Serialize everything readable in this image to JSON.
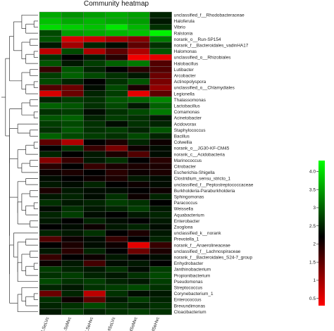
{
  "chart_data": {
    "type": "heatmap",
    "title": "Community heatmap",
    "columns": [
      "LSeLVc",
      "LSsMvc",
      "LSeHvc",
      "HSsLVc",
      "HSsMvc",
      "HSeHvc"
    ],
    "rows": [
      "unclassified_f__Rhodobacteraceae",
      "Haloferula",
      "Vibrio",
      "Ralstonia",
      "norank_o__Run-SP154",
      "norank_f__Bacteroidales_vadinHA17",
      "Halomonas",
      "unclassified_o__Rhizobiales",
      "Halobacillus",
      "Lutibacter",
      "Arcobacter",
      "Actinopolyspora",
      "unclassified_o__Chlamydiales",
      "Legionella",
      "Thalassomonas",
      "Lactobacillus",
      "Comamonas",
      "Acinetobacter",
      "Acidovorax",
      "Staphylococcus",
      "Bacillus",
      "Colwellia",
      "norank_o__JG30-KF-CM45",
      "norank_c__Acidobacteria",
      "Marinococcus",
      "Citrobacter",
      "Escherichia-Shigella",
      "Clostridium_sensu_stricto_1",
      "unclassified_f__Peptostreptococcaceae",
      "Burkholderia-Paraburkholderia",
      "Sphingomonas",
      "Paracoccus",
      "Weissella",
      "Aquabacterium",
      "Enterobacter",
      "Zoogloea",
      "unclassified_k__norank",
      "Prevotella_1",
      "norank_f__Anaerolineaceae",
      "unclassified_f__Lachnospiraceae",
      "norank_f__Bacteroidales_S24-7_group",
      "Enhydrobacter",
      "Janthinobacterium",
      "Propionibacterium",
      "Pseudomonas",
      "Streptococcus",
      "Corynebacterium_1",
      "Enterococcus",
      "Brevundimonas",
      "Cloacibacterium"
    ],
    "values": [
      [
        3.6,
        3.4,
        3.5,
        3.6,
        3.5,
        2.5
      ],
      [
        3.8,
        3.6,
        3.7,
        3.6,
        3.5,
        2.4
      ],
      [
        4.0,
        3.9,
        3.8,
        4.1,
        3.7,
        2.6
      ],
      [
        2.8,
        3.5,
        3.6,
        3.7,
        3.8,
        4.2
      ],
      [
        2.9,
        0.6,
        0.7,
        1.0,
        1.2,
        3.2
      ],
      [
        2.4,
        1.0,
        2.5,
        2.3,
        1.5,
        2.6
      ],
      [
        0.8,
        2.8,
        0.9,
        1.5,
        0.9,
        2.9
      ],
      [
        2.6,
        2.2,
        2.4,
        1.9,
        0.4,
        0.5
      ],
      [
        2.9,
        2.4,
        2.7,
        3.0,
        3.2,
        1.6
      ],
      [
        1.8,
        2.9,
        2.5,
        2.2,
        1.9,
        1.6
      ],
      [
        2.7,
        3.0,
        2.8,
        2.6,
        2.4,
        1.4
      ],
      [
        2.8,
        2.5,
        2.2,
        2.6,
        2.9,
        1.3
      ],
      [
        1.6,
        1.4,
        2.3,
        2.8,
        2.0,
        1.1
      ],
      [
        0.6,
        1.4,
        2.5,
        2.7,
        0.5,
        1.5
      ],
      [
        2.5,
        2.7,
        2.6,
        2.9,
        3.0,
        3.3
      ],
      [
        3.0,
        2.9,
        2.6,
        2.8,
        2.4,
        3.0
      ],
      [
        2.6,
        2.7,
        2.3,
        2.6,
        2.8,
        3.2
      ],
      [
        2.9,
        3.0,
        2.5,
        2.7,
        2.6,
        2.4
      ],
      [
        2.7,
        2.8,
        2.6,
        2.3,
        2.6,
        2.5
      ],
      [
        2.6,
        2.9,
        2.6,
        2.7,
        2.5,
        2.9
      ],
      [
        3.0,
        2.8,
        2.7,
        2.6,
        2.8,
        2.5
      ],
      [
        1.5,
        0.9,
        2.2,
        2.0,
        2.5,
        2.1
      ],
      [
        2.2,
        2.6,
        1.8,
        1.3,
        2.1,
        2.3
      ],
      [
        2.5,
        2.2,
        2.4,
        2.0,
        1.6,
        2.3
      ],
      [
        1.2,
        1.8,
        2.4,
        2.6,
        2.2,
        1.9
      ],
      [
        1.9,
        2.2,
        1.8,
        2.0,
        2.0,
        2.0
      ],
      [
        2.1,
        2.0,
        2.2,
        1.9,
        2.1,
        2.0
      ],
      [
        2.3,
        2.2,
        2.1,
        2.0,
        2.4,
        2.3
      ],
      [
        2.4,
        2.3,
        2.5,
        2.2,
        2.1,
        2.3
      ],
      [
        2.0,
        2.4,
        2.3,
        2.3,
        2.2,
        2.1
      ],
      [
        2.4,
        2.5,
        2.3,
        2.6,
        2.1,
        2.5
      ],
      [
        2.6,
        2.4,
        2.5,
        2.7,
        2.6,
        2.2
      ],
      [
        2.3,
        2.6,
        2.4,
        2.5,
        2.7,
        2.4
      ],
      [
        2.5,
        2.7,
        2.3,
        2.2,
        2.4,
        2.5
      ],
      [
        2.4,
        2.2,
        2.5,
        2.3,
        2.2,
        2.4
      ],
      [
        2.2,
        2.3,
        2.1,
        2.4,
        2.5,
        2.3
      ],
      [
        2.5,
        2.4,
        2.6,
        2.2,
        2.0,
        2.4
      ],
      [
        1.6,
        2.1,
        2.3,
        1.8,
        2.2,
        2.5
      ],
      [
        2.2,
        2.0,
        2.3,
        2.1,
        0.5,
        1.8
      ],
      [
        2.4,
        1.9,
        2.5,
        2.2,
        1.4,
        2.0
      ],
      [
        1.8,
        2.2,
        2.1,
        2.4,
        2.2,
        2.3
      ],
      [
        2.1,
        2.4,
        1.7,
        2.3,
        2.4,
        2.2
      ],
      [
        2.7,
        2.5,
        2.4,
        2.6,
        2.3,
        2.7
      ],
      [
        2.6,
        2.7,
        2.5,
        2.4,
        2.6,
        2.8
      ],
      [
        2.8,
        2.6,
        2.7,
        2.5,
        2.4,
        2.7
      ],
      [
        2.5,
        2.4,
        2.6,
        2.7,
        2.8,
        2.6
      ],
      [
        1.4,
        2.5,
        0.8,
        2.6,
        2.3,
        2.4
      ],
      [
        2.6,
        2.1,
        1.5,
        2.4,
        2.7,
        2.5
      ],
      [
        2.5,
        2.6,
        2.8,
        2.6,
        2.5,
        2.6
      ],
      [
        2.4,
        2.7,
        2.5,
        2.6,
        2.7,
        2.6
      ]
    ],
    "color_scale": {
      "min": 0.3,
      "mid": 2.2,
      "max": 4.3,
      "low_color": "#ff0000",
      "mid_color": "#000000",
      "high_color": "#00ff00",
      "ticks": [
        0.5,
        1.0,
        1.5,
        2.0,
        2.5,
        3.0,
        3.5,
        4.0
      ],
      "tick_labels": [
        "0.5",
        "1",
        "1.5",
        "2",
        "2.5",
        "3",
        "3.5",
        "4.0"
      ]
    },
    "dendrogram": "left",
    "legend_position": "right"
  }
}
